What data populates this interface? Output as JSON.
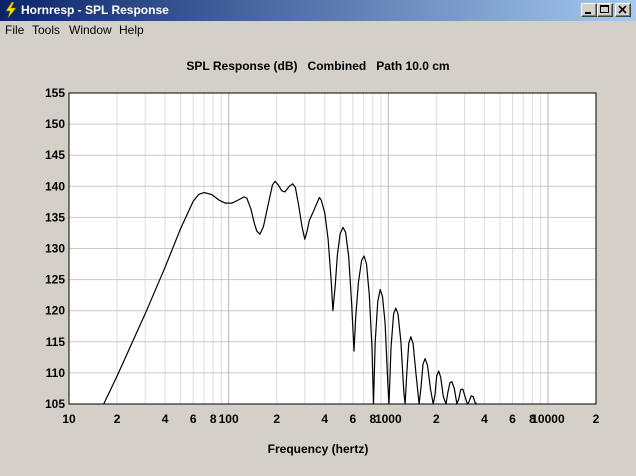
{
  "window": {
    "title": "Hornresp - SPL Response",
    "icon": "lightning-bolt-icon"
  },
  "menu": {
    "items": [
      "File",
      "Tools",
      "Window",
      "Help"
    ]
  },
  "chart_data": {
    "type": "line",
    "title": "SPL Response (dB)   Combined   Path 10.0 cm",
    "xlabel": "Frequency (hertz)",
    "ylabel": "",
    "x_scale": "log",
    "xlim": [
      10,
      20000
    ],
    "ylim": [
      105,
      155
    ],
    "grid": true,
    "y_ticks": [
      "155",
      "150",
      "145",
      "140",
      "135",
      "130",
      "125",
      "120",
      "115",
      "110",
      "105"
    ],
    "x_tick_labels": [
      {
        "value": 10,
        "label": "10"
      },
      {
        "value": 20,
        "label": "2"
      },
      {
        "value": 40,
        "label": "4"
      },
      {
        "value": 60,
        "label": "6"
      },
      {
        "value": 80,
        "label": "8"
      },
      {
        "value": 100,
        "label": "100"
      },
      {
        "value": 200,
        "label": "2"
      },
      {
        "value": 400,
        "label": "4"
      },
      {
        "value": 600,
        "label": "6"
      },
      {
        "value": 800,
        "label": "8"
      },
      {
        "value": 1000,
        "label": "1000"
      },
      {
        "value": 2000,
        "label": "2"
      },
      {
        "value": 4000,
        "label": "4"
      },
      {
        "value": 6000,
        "label": "6"
      },
      {
        "value": 8000,
        "label": "8"
      },
      {
        "value": 10000,
        "label": "10000"
      },
      {
        "value": 20000,
        "label": "2"
      }
    ],
    "series": [
      {
        "color": "#000000",
        "points": [
          [
            16.5,
            105
          ],
          [
            20,
            109.5
          ],
          [
            25,
            115
          ],
          [
            30,
            119.5
          ],
          [
            40,
            127
          ],
          [
            50,
            133.2
          ],
          [
            60,
            137.6
          ],
          [
            65,
            138.7
          ],
          [
            70,
            139
          ],
          [
            78,
            138.7
          ],
          [
            88,
            137.7
          ],
          [
            95,
            137.3
          ],
          [
            105,
            137.3
          ],
          [
            115,
            137.8
          ],
          [
            125,
            138.3
          ],
          [
            130,
            138.1
          ],
          [
            138,
            136.3
          ],
          [
            145,
            134
          ],
          [
            150,
            132.8
          ],
          [
            157,
            132.3
          ],
          [
            165,
            133.5
          ],
          [
            175,
            136.5
          ],
          [
            188,
            140.2
          ],
          [
            195,
            140.8
          ],
          [
            205,
            140.2
          ],
          [
            215,
            139.3
          ],
          [
            225,
            139.1
          ],
          [
            240,
            140
          ],
          [
            252,
            140.4
          ],
          [
            262,
            139.8
          ],
          [
            275,
            136.8
          ],
          [
            288,
            133.5
          ],
          [
            300,
            131.5
          ],
          [
            310,
            132.8
          ],
          [
            320,
            134.5
          ],
          [
            340,
            136
          ],
          [
            360,
            137.5
          ],
          [
            370,
            138.2
          ],
          [
            380,
            137.8
          ],
          [
            400,
            135.7
          ],
          [
            420,
            131.5
          ],
          [
            438,
            125
          ],
          [
            450,
            120
          ],
          [
            465,
            124
          ],
          [
            480,
            129
          ],
          [
            500,
            132.4
          ],
          [
            520,
            133.4
          ],
          [
            540,
            132.6
          ],
          [
            565,
            128.7
          ],
          [
            590,
            121
          ],
          [
            610,
            113.5
          ],
          [
            625,
            119
          ],
          [
            650,
            124.5
          ],
          [
            680,
            128.1
          ],
          [
            705,
            128.8
          ],
          [
            730,
            127.5
          ],
          [
            760,
            122.5
          ],
          [
            790,
            114
          ],
          [
            808,
            105
          ],
          [
            828,
            115
          ],
          [
            860,
            121.5
          ],
          [
            890,
            123.4
          ],
          [
            920,
            122.3
          ],
          [
            955,
            118
          ],
          [
            995,
            108
          ],
          [
            1010,
            105
          ],
          [
            1040,
            114
          ],
          [
            1080,
            119.5
          ],
          [
            1115,
            120.4
          ],
          [
            1150,
            119.5
          ],
          [
            1200,
            115
          ],
          [
            1250,
            107
          ],
          [
            1275,
            105
          ],
          [
            1305,
            110
          ],
          [
            1345,
            114.8
          ],
          [
            1385,
            115.8
          ],
          [
            1430,
            114.7
          ],
          [
            1490,
            110
          ],
          [
            1560,
            105
          ],
          [
            1600,
            107.5
          ],
          [
            1650,
            111.4
          ],
          [
            1700,
            112.3
          ],
          [
            1760,
            111.2
          ],
          [
            1840,
            107.3
          ],
          [
            1910,
            105
          ],
          [
            1960,
            106.5
          ],
          [
            2010,
            109.5
          ],
          [
            2070,
            110.3
          ],
          [
            2130,
            109.3
          ],
          [
            2210,
            106.2
          ],
          [
            2300,
            105
          ],
          [
            2360,
            106.8
          ],
          [
            2430,
            108.4
          ],
          [
            2500,
            108.6
          ],
          [
            2590,
            107.5
          ],
          [
            2690,
            105
          ],
          [
            2760,
            105.8
          ],
          [
            2840,
            107.3
          ],
          [
            2930,
            107.4
          ],
          [
            3030,
            106.1
          ],
          [
            3130,
            105
          ],
          [
            3200,
            105.3
          ],
          [
            3300,
            106.3
          ],
          [
            3400,
            106.2
          ],
          [
            3500,
            105.2
          ],
          [
            3600,
            105
          ]
        ]
      }
    ]
  }
}
